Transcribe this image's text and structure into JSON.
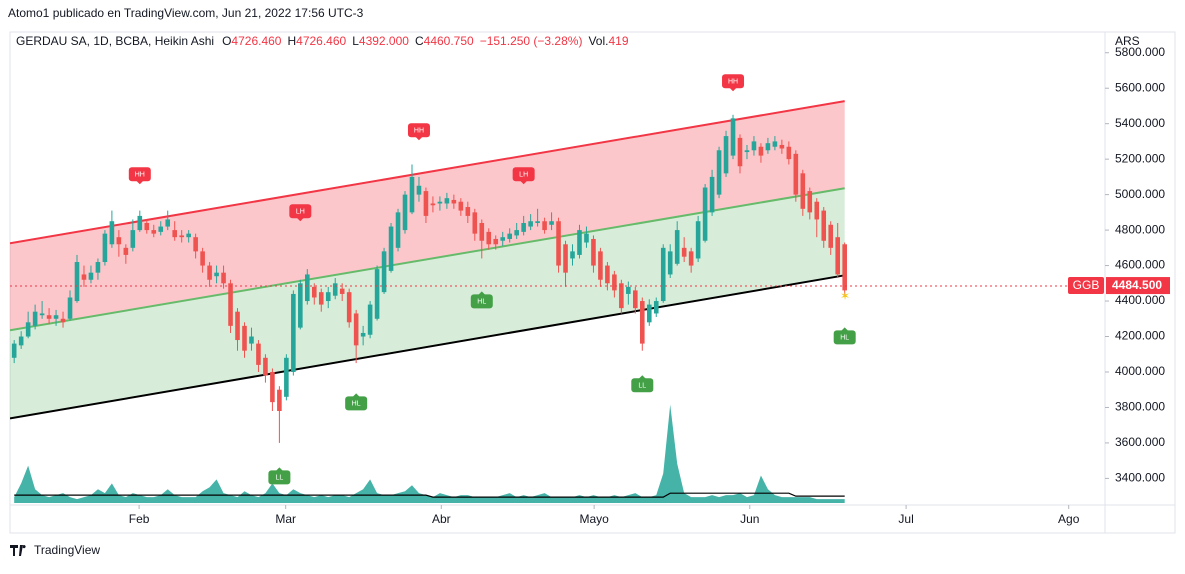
{
  "publisher": "Atomo1 publicado en TradingView.com, Jun 21, 2022 17:56 UTC-3",
  "footer": "TradingView",
  "chart_data": {
    "type": "candlestick",
    "header": {
      "symbol": "GERDAU SA, 1D, BCBA, Heikin Ashi",
      "fields": [
        {
          "label": "O",
          "value": "4726.460"
        },
        {
          "label": "H",
          "value": "4726.460"
        },
        {
          "label": "L",
          "value": "4392.000"
        },
        {
          "label": "C",
          "value": "4460.750"
        }
      ],
      "change": "−151.250 (−3.28%)",
      "volume_label": "Vol.",
      "volume_value": "419"
    },
    "currency": "ARS",
    "up_color": "#26a69a",
    "down_color": "#ef5350",
    "xlim": [
      -0.6,
      156.3
    ],
    "xticks": [
      {
        "value": 17.9,
        "label": "Feb"
      },
      {
        "value": 38.9,
        "label": "Mar"
      },
      {
        "value": 61.2,
        "label": "Abr"
      },
      {
        "value": 83.1,
        "label": "Mayo"
      },
      {
        "value": 105.4,
        "label": "Jun"
      },
      {
        "value": 127.8,
        "label": "Jul"
      },
      {
        "value": 151.1,
        "label": "Ago"
      }
    ],
    "ylim": [
      3250,
      5900
    ],
    "yticks": [
      {
        "value": 3400,
        "label": "3400.000"
      },
      {
        "value": 3600,
        "label": "3600.000"
      },
      {
        "value": 3800,
        "label": "3800.000"
      },
      {
        "value": 4000,
        "label": "4000.000"
      },
      {
        "value": 4200,
        "label": "4200.000"
      },
      {
        "value": 4400,
        "label": "4400.000"
      },
      {
        "value": 4600,
        "label": "4600.000"
      },
      {
        "value": 4800,
        "label": "4800.000"
      },
      {
        "value": 5000,
        "label": "5000.000"
      },
      {
        "value": 5200,
        "label": "5200.000"
      },
      {
        "value": 5400,
        "label": "5400.000"
      },
      {
        "value": 5600,
        "label": "5600.000"
      },
      {
        "value": 5800,
        "label": "5800.000"
      }
    ],
    "candles": {
      "open": [
        4080,
        4150,
        4200,
        4260,
        4320,
        4320,
        4300,
        4300,
        4300,
        4400,
        4550,
        4520,
        4560,
        4620,
        4720,
        4760,
        4700,
        4700,
        4800,
        4840,
        4800,
        4790,
        4820,
        4800,
        4770,
        4760,
        4760,
        4680,
        4600,
        4540,
        4560,
        4500,
        4340,
        4260,
        4160,
        4160,
        4080,
        4000,
        3900,
        3860,
        4000,
        4250,
        4400,
        4480,
        4450,
        4400,
        4430,
        4470,
        4450,
        4330,
        4200,
        4210,
        4300,
        4450,
        4570,
        4700,
        4800,
        4900,
        5000,
        5020,
        4950,
        4950,
        4950,
        4970,
        4960,
        4930,
        4900,
        4840,
        4790,
        4750,
        4740,
        4750,
        4770,
        4790,
        4820,
        4840,
        4850,
        4830,
        4850,
        4720,
        4640,
        4660,
        4730,
        4750,
        4680,
        4600,
        4550,
        4500,
        4440,
        4460,
        4400,
        4280,
        4330,
        4400,
        4550,
        4610,
        4700,
        4680,
        4640,
        4740,
        4900,
        5000,
        5120,
        5220,
        5320,
        5240,
        5250,
        5270,
        5250,
        5270,
        5280,
        5270,
        5230,
        5120,
        5020,
        4960,
        4910,
        4830,
        4760,
        4720
      ],
      "high": [
        4180,
        4230,
        4340,
        4380,
        4400,
        4360,
        4350,
        4340,
        4460,
        4660,
        4600,
        4600,
        4640,
        4800,
        4910,
        4800,
        4720,
        4860,
        4910,
        4860,
        4830,
        4850,
        4910,
        4850,
        4800,
        4800,
        4780,
        4700,
        4620,
        4600,
        4600,
        4520,
        4360,
        4280,
        4250,
        4180,
        4100,
        4020,
        3920,
        4100,
        4460,
        4520,
        4580,
        4500,
        4470,
        4480,
        4530,
        4500,
        4470,
        4350,
        4260,
        4400,
        4600,
        4700,
        4840,
        4920,
        5020,
        5170,
        5100,
        5040,
        4990,
        4990,
        5010,
        5000,
        4980,
        4960,
        4920,
        4860,
        4810,
        4770,
        4790,
        4810,
        4840,
        4880,
        4890,
        4920,
        4870,
        4900,
        4870,
        4740,
        4720,
        4830,
        4820,
        4770,
        4700,
        4620,
        4570,
        4520,
        4510,
        4480,
        4420,
        4410,
        4420,
        4720,
        4720,
        4850,
        4760,
        4700,
        4880,
        5060,
        5140,
        5270,
        5360,
        5450,
        5340,
        5280,
        5330,
        5290,
        5320,
        5330,
        5310,
        5300,
        5250,
        5140,
        5040,
        4980,
        4930,
        4850,
        4840,
        4730
      ],
      "low": [
        4050,
        4130,
        4190,
        4240,
        4300,
        4270,
        4260,
        4250,
        4290,
        4390,
        4480,
        4500,
        4520,
        4600,
        4700,
        4650,
        4610,
        4680,
        4790,
        4780,
        4760,
        4770,
        4800,
        4740,
        4730,
        4730,
        4640,
        4560,
        4480,
        4500,
        4470,
        4220,
        4120,
        4080,
        4120,
        4000,
        3940,
        3780,
        3600,
        3840,
        3980,
        4240,
        4380,
        4380,
        4340,
        4360,
        4410,
        4400,
        4250,
        4050,
        4150,
        4190,
        4290,
        4440,
        4560,
        4680,
        4780,
        4890,
        4960,
        4840,
        4900,
        4910,
        4920,
        4920,
        4880,
        4840,
        4740,
        4640,
        4690,
        4690,
        4710,
        4730,
        4750,
        4770,
        4800,
        4820,
        4780,
        4800,
        4560,
        4480,
        4600,
        4640,
        4700,
        4560,
        4480,
        4460,
        4420,
        4330,
        4380,
        4330,
        4120,
        4260,
        4310,
        4390,
        4530,
        4600,
        4620,
        4560,
        4620,
        4730,
        4880,
        4980,
        5100,
        5200,
        5120,
        5200,
        5220,
        5180,
        5230,
        5250,
        5230,
        5170,
        4960,
        4880,
        4860,
        4760,
        4700,
        4660,
        4530,
        4430
      ],
      "close": [
        4160,
        4200,
        4280,
        4340,
        4330,
        4300,
        4320,
        4280,
        4420,
        4620,
        4520,
        4560,
        4620,
        4780,
        4850,
        4720,
        4660,
        4800,
        4880,
        4800,
        4780,
        4820,
        4860,
        4760,
        4760,
        4780,
        4680,
        4600,
        4520,
        4560,
        4500,
        4260,
        4180,
        4120,
        4200,
        4040,
        3980,
        3830,
        3780,
        4080,
        4440,
        4500,
        4550,
        4420,
        4380,
        4450,
        4500,
        4440,
        4280,
        4150,
        4220,
        4380,
        4580,
        4680,
        4820,
        4900,
        5000,
        5100,
        5050,
        4880,
        4940,
        4960,
        4980,
        4950,
        4910,
        4880,
        4780,
        4740,
        4720,
        4720,
        4760,
        4780,
        4800,
        4840,
        4850,
        4850,
        4800,
        4850,
        4600,
        4560,
        4680,
        4800,
        4780,
        4600,
        4520,
        4500,
        4460,
        4360,
        4480,
        4360,
        4160,
        4380,
        4400,
        4700,
        4680,
        4800,
        4650,
        4600,
        4850,
        5040,
        5100,
        5250,
        5330,
        5430,
        5160,
        5250,
        5300,
        5220,
        5290,
        5300,
        5260,
        5200,
        5000,
        4920,
        4900,
        4860,
        4740,
        4700,
        4550,
        4460
      ]
    },
    "volume": {
      "ylim": [
        0,
        120
      ],
      "color": "#26a69a",
      "ma_color": "#000000",
      "values": [
        6,
        20,
        38,
        14,
        8,
        6,
        8,
        10,
        6,
        4,
        6,
        8,
        14,
        10,
        20,
        8,
        6,
        10,
        8,
        6,
        6,
        8,
        14,
        8,
        6,
        6,
        6,
        12,
        16,
        24,
        10,
        8,
        6,
        12,
        8,
        6,
        10,
        20,
        10,
        8,
        14,
        10,
        8,
        6,
        8,
        6,
        8,
        8,
        6,
        10,
        14,
        24,
        10,
        8,
        8,
        10,
        12,
        18,
        10,
        8,
        6,
        10,
        8,
        6,
        8,
        8,
        6,
        6,
        6,
        6,
        8,
        10,
        6,
        8,
        6,
        8,
        10,
        6,
        6,
        6,
        6,
        8,
        6,
        8,
        6,
        6,
        8,
        6,
        8,
        10,
        6,
        6,
        8,
        30,
        100,
        40,
        10,
        6,
        6,
        6,
        8,
        6,
        8,
        8,
        10,
        6,
        8,
        28,
        14,
        8,
        6,
        6,
        6,
        6,
        6,
        4,
        4,
        4,
        4,
        4
      ],
      "ma": [
        8,
        8,
        8,
        8,
        8,
        8,
        8,
        8,
        8,
        8,
        8,
        8,
        8,
        8,
        8,
        8,
        8,
        8,
        8,
        8,
        8,
        8,
        8,
        8,
        8,
        8,
        8,
        8,
        8,
        8,
        8,
        8,
        8,
        8,
        8,
        8,
        8,
        8,
        8,
        8,
        8,
        8,
        8,
        8,
        8,
        8,
        8,
        8,
        8,
        8,
        8,
        8,
        8,
        8,
        8,
        8,
        8,
        8,
        8,
        8,
        6,
        6,
        6,
        6,
        6,
        6,
        6,
        6,
        6,
        6,
        6,
        6,
        6,
        6,
        6,
        6,
        6,
        6,
        6,
        6,
        6,
        6,
        6,
        6,
        6,
        6,
        6,
        6,
        6,
        6,
        6,
        6,
        6,
        6,
        10,
        10,
        10,
        10,
        10,
        10,
        10,
        10,
        10,
        10,
        10,
        10,
        10,
        10,
        10,
        10,
        10,
        10,
        7,
        7,
        7,
        7,
        7,
        7,
        7,
        7
      ]
    },
    "channel": {
      "upper_fill": "rgba(242,54,69,0.28)",
      "lower_fill": "rgba(76,175,80,0.22)",
      "lines": [
        {
          "color": "#f23645",
          "x": [
            -0.6,
            119.0
          ],
          "values": [
            4726,
            5527
          ]
        },
        {
          "color": "#66bb6a",
          "x": [
            -0.6,
            119.0
          ],
          "values": [
            4235,
            5036
          ]
        },
        {
          "color": "#000000",
          "x": [
            -0.6,
            119.0
          ],
          "values": [
            3738,
            4545
          ]
        }
      ]
    },
    "pivots": [
      {
        "label": "HH",
        "x": 18,
        "value": 5115,
        "color": "#f23645"
      },
      {
        "label": "LH",
        "x": 41,
        "value": 4906,
        "color": "#f23645"
      },
      {
        "label": "HH",
        "x": 58,
        "value": 5363,
        "color": "#f23645"
      },
      {
        "label": "LH",
        "x": 73,
        "value": 5115,
        "color": "#f23645"
      },
      {
        "label": "HH",
        "x": 103,
        "value": 5639,
        "color": "#f23645"
      },
      {
        "label": "HL",
        "x": 67,
        "value": 4398,
        "color": "#43a047"
      },
      {
        "label": "HL",
        "x": 49,
        "value": 3823,
        "color": "#43a047"
      },
      {
        "label": "LL",
        "x": 38,
        "value": 3406,
        "color": "#43a047"
      },
      {
        "label": "LL",
        "x": 90,
        "value": 3925,
        "color": "#43a047"
      },
      {
        "label": "HL",
        "x": 119,
        "value": 4195,
        "color": "#43a047"
      }
    ],
    "last_price": {
      "symbol": "GGB",
      "value": 4484.5,
      "label": "4484.500",
      "color": "#f23645"
    }
  }
}
